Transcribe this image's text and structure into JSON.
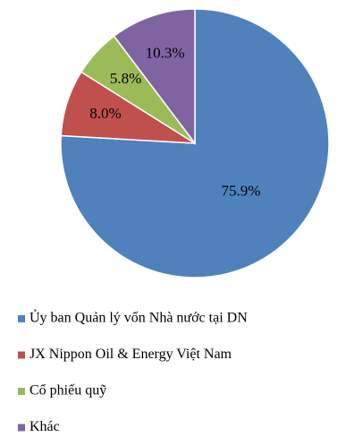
{
  "chart_data": {
    "type": "pie",
    "categories": [
      "Ủy ban Quản lý vốn Nhà nước tại DN",
      "JX Nippon Oil & Energy Việt Nam",
      "Cổ phiếu quỹ",
      "Khác"
    ],
    "values": [
      75.9,
      8.0,
      5.8,
      10.3
    ],
    "value_labels": [
      "75.9%",
      "8.0%",
      "5.8%",
      "10.3%"
    ],
    "colors": [
      "#4f81bd",
      "#c0504d",
      "#9bbb59",
      "#8064a2"
    ],
    "legend": "bottom"
  }
}
